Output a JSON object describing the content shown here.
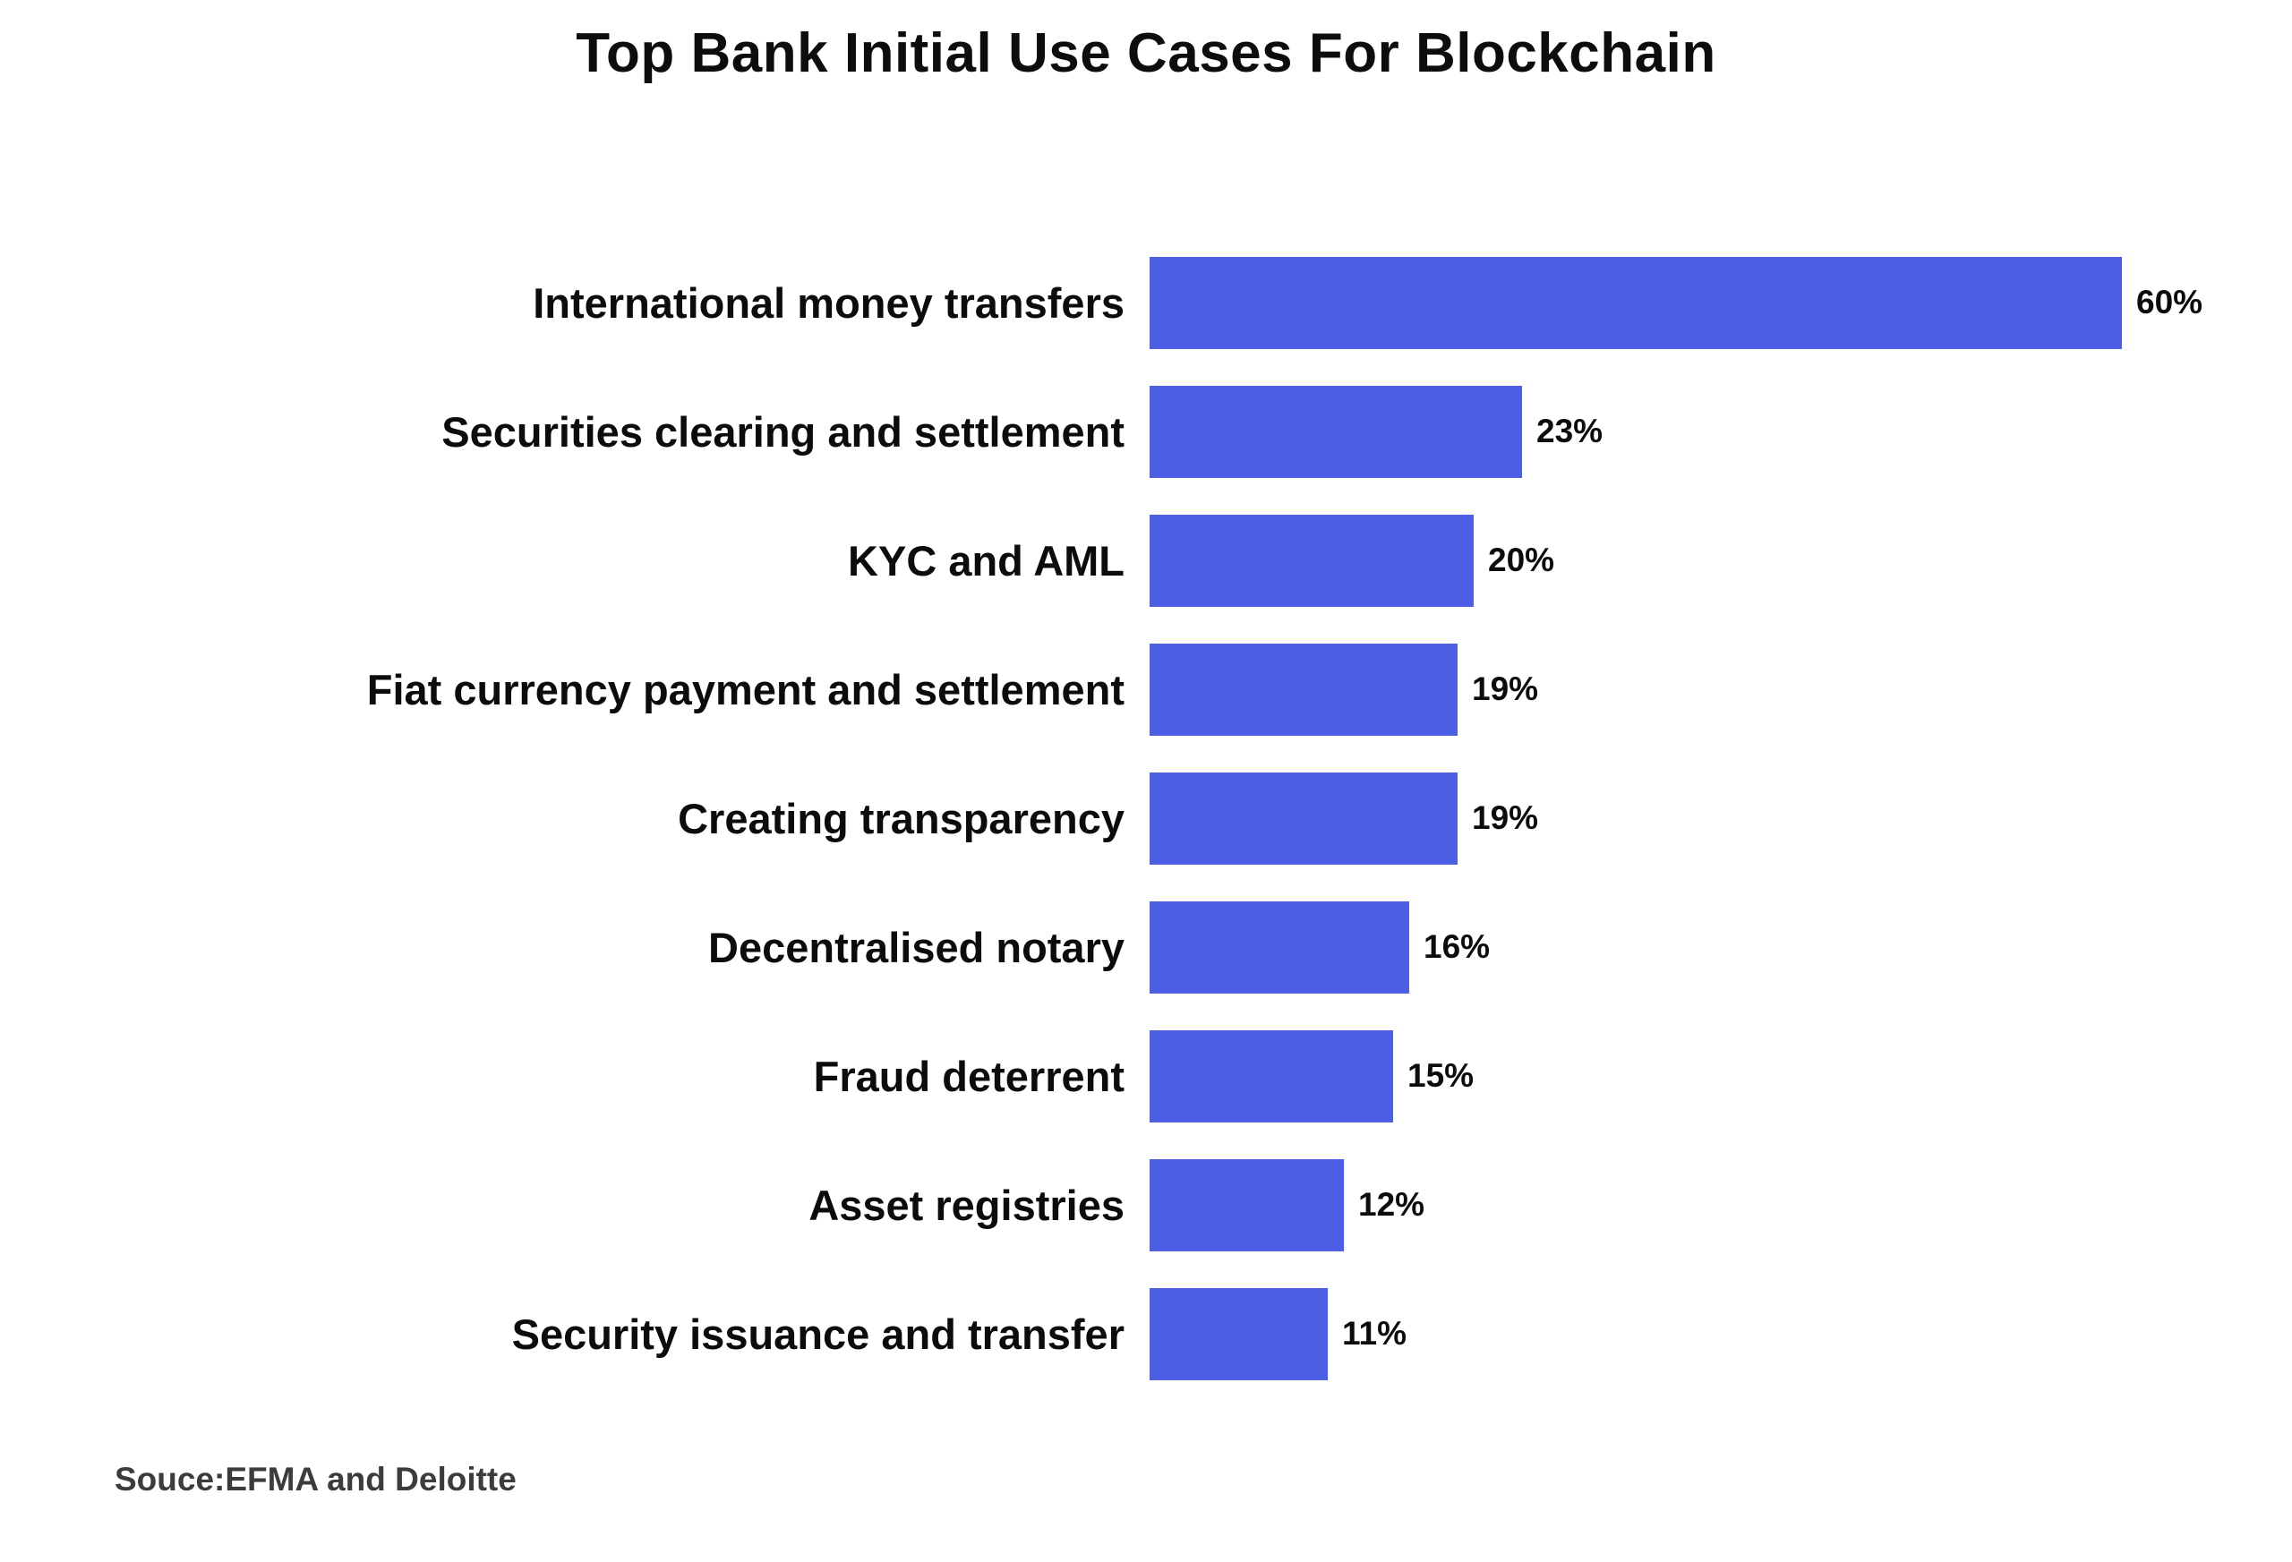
{
  "page": {
    "background": "#ffffff"
  },
  "chart_data": {
    "type": "bar",
    "orientation": "horizontal",
    "title": "Top Bank Initial Use Cases For Blockchain",
    "categories": [
      "International money transfers",
      "Securities clearing and settlement",
      "KYC and AML",
      "Fiat currency payment and settlement",
      "Creating transparency",
      "Decentralised notary",
      "Fraud deterrent",
      "Asset registries",
      "Security issuance and transfer"
    ],
    "values": [
      60,
      23,
      20,
      19,
      19,
      16,
      15,
      12,
      11
    ],
    "value_labels": [
      "60%",
      "23%",
      "20%",
      "19%",
      "19%",
      "16%",
      "15%",
      "12%",
      "11%"
    ],
    "unit": "%",
    "xlim": [
      0,
      60
    ],
    "bar_color": "#4B5EE4",
    "grid": false,
    "legend": "none",
    "axes_visible": false,
    "source": "Souce:EFMA and Deloitte"
  }
}
